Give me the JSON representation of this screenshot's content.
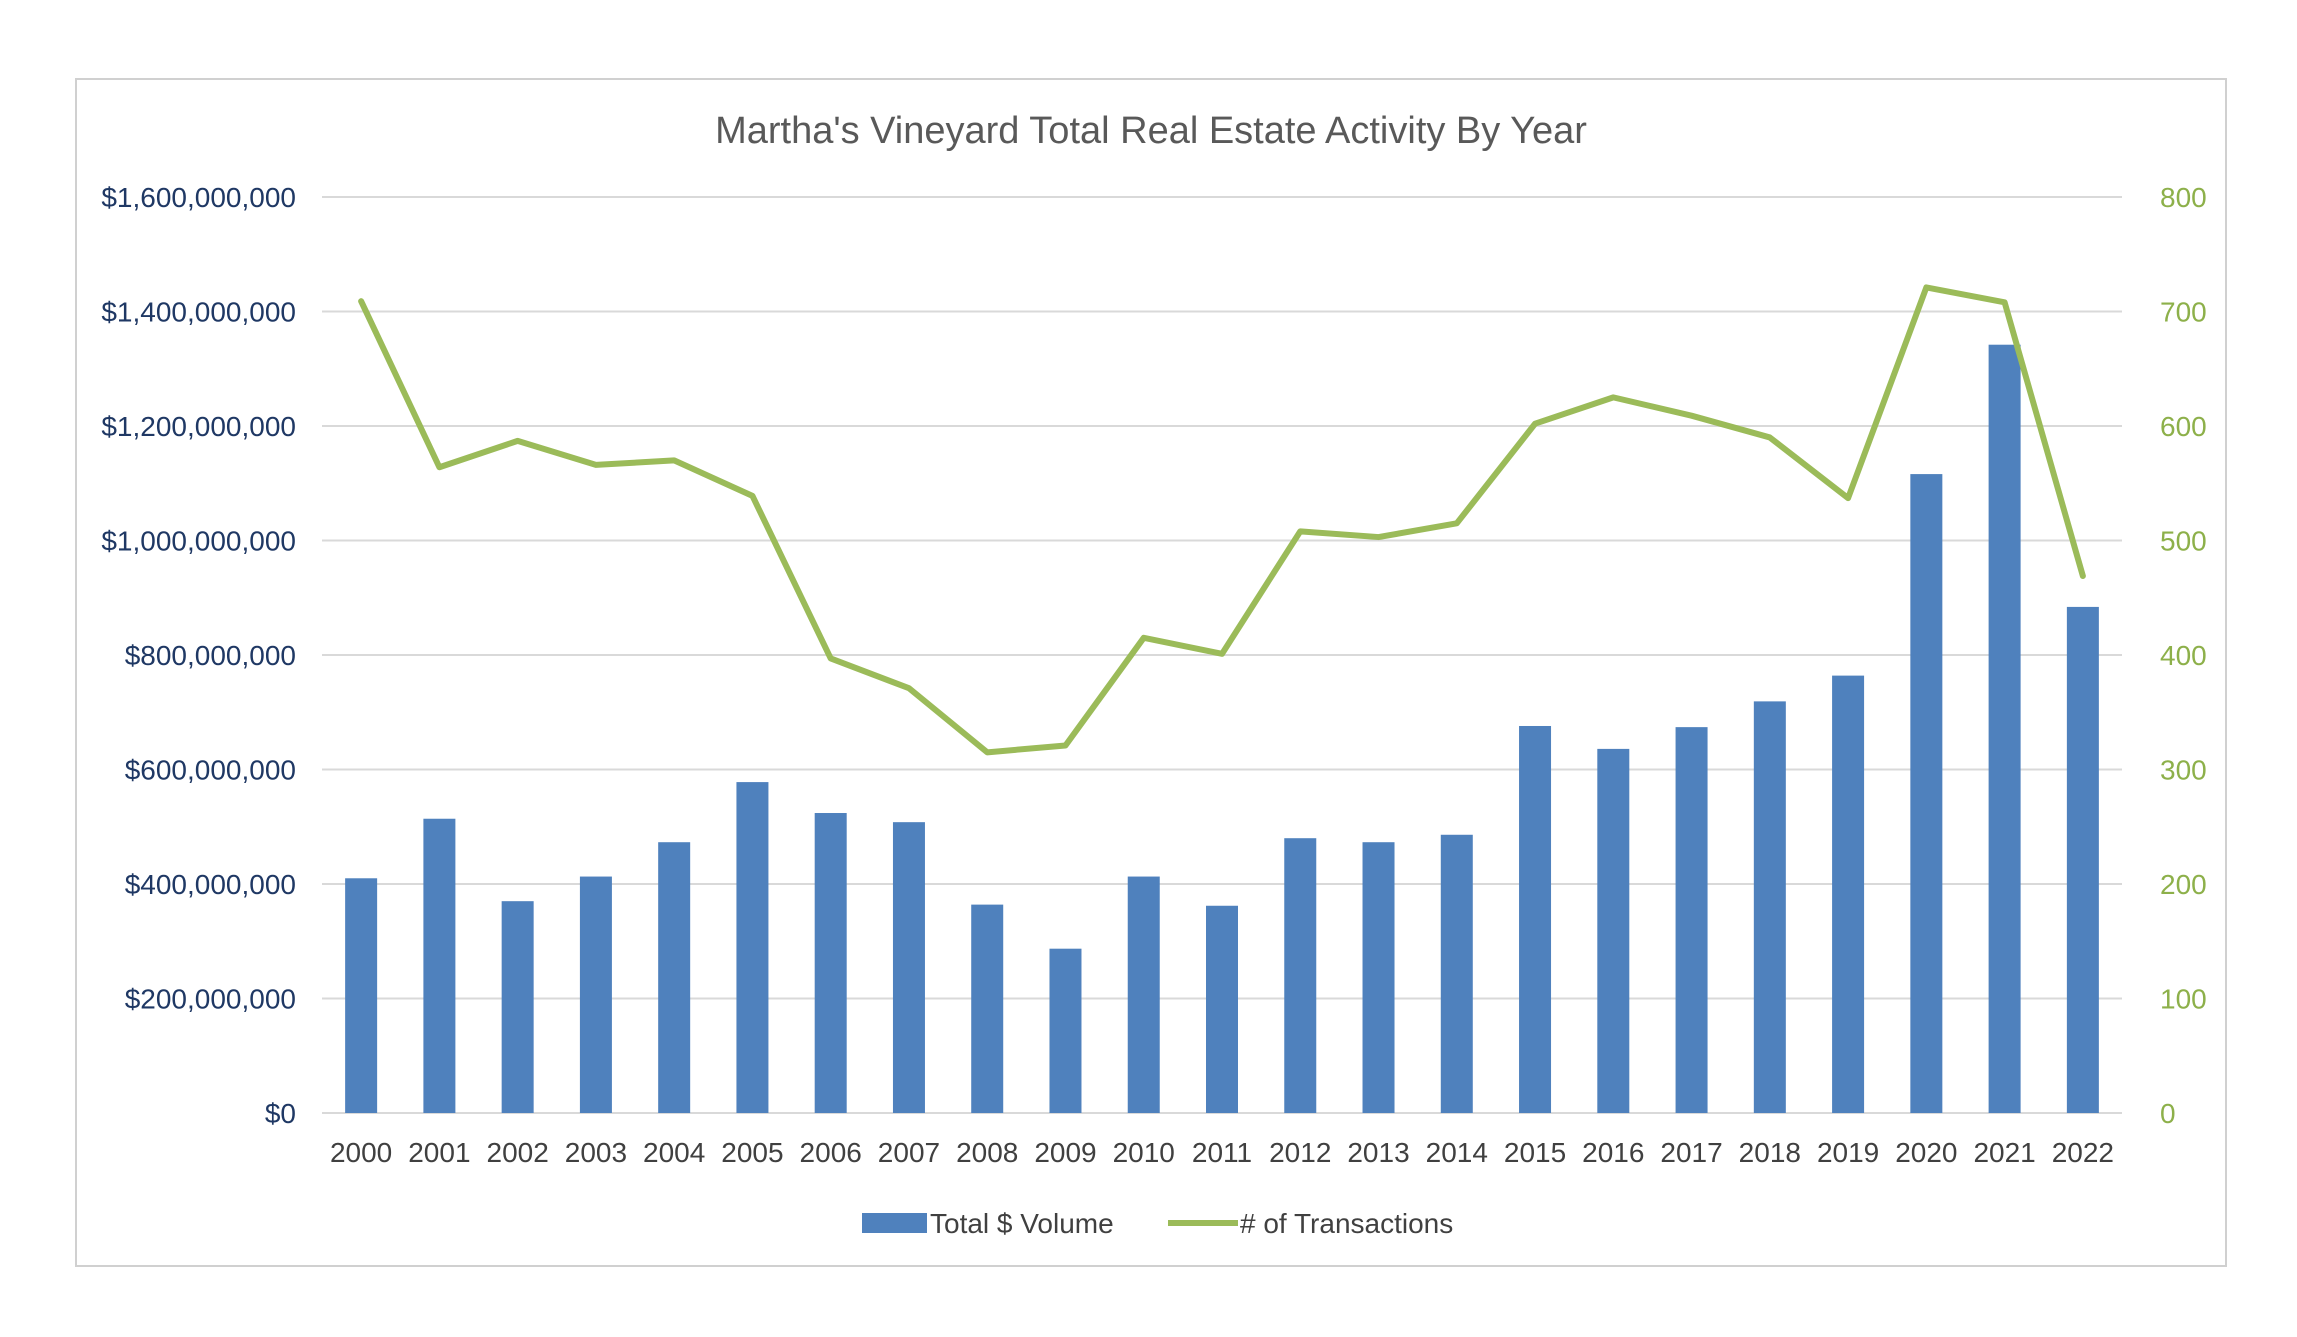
{
  "chart_data": {
    "type": "bar",
    "title": "Martha's Vineyard Total Real Estate Activity By Year",
    "categories": [
      "2000",
      "2001",
      "2002",
      "2003",
      "2004",
      "2005",
      "2006",
      "2007",
      "2008",
      "2009",
      "2010",
      "2011",
      "2012",
      "2013",
      "2014",
      "2015",
      "2016",
      "2017",
      "2018",
      "2019",
      "2020",
      "2021",
      "2022"
    ],
    "series": [
      {
        "name": "Total $ Volume",
        "type": "bar",
        "axis": "left",
        "color": "#4f81bd",
        "values": [
          410000000,
          514000000,
          370000000,
          413000000,
          473000000,
          578000000,
          524000000,
          508000000,
          364000000,
          287000000,
          413000000,
          362000000,
          480000000,
          473000000,
          486000000,
          676000000,
          636000000,
          674000000,
          719000000,
          764000000,
          1116000000,
          1342000000,
          884000000
        ]
      },
      {
        "name": "# of Transactions",
        "type": "line",
        "axis": "right",
        "color": "#9bbb59",
        "values": [
          709,
          564,
          587,
          566,
          570,
          539,
          397,
          371,
          315,
          321,
          415,
          401,
          508,
          503,
          515,
          602,
          625,
          609,
          590,
          537,
          721,
          708,
          469
        ]
      }
    ],
    "y_left": {
      "ylim": [
        0,
        1600000000
      ],
      "ticks": [
        "$0",
        "$200,000,000",
        "$400,000,000",
        "$600,000,000",
        "$800,000,000",
        "$1,000,000,000",
        "$1,200,000,000",
        "$1,400,000,000",
        "$1,600,000,000"
      ]
    },
    "y_right": {
      "ylim": [
        0,
        800
      ],
      "ticks": [
        "0",
        "100",
        "200",
        "300",
        "400",
        "500",
        "600",
        "700",
        "800"
      ]
    },
    "grid": true,
    "legend": "bottom",
    "colors": {
      "bar": "#4f81bd",
      "line": "#9bbb59",
      "grid": "#d9d9d9",
      "left_axis_text": "#1f3864",
      "right_axis_text": "#8db04a"
    }
  }
}
